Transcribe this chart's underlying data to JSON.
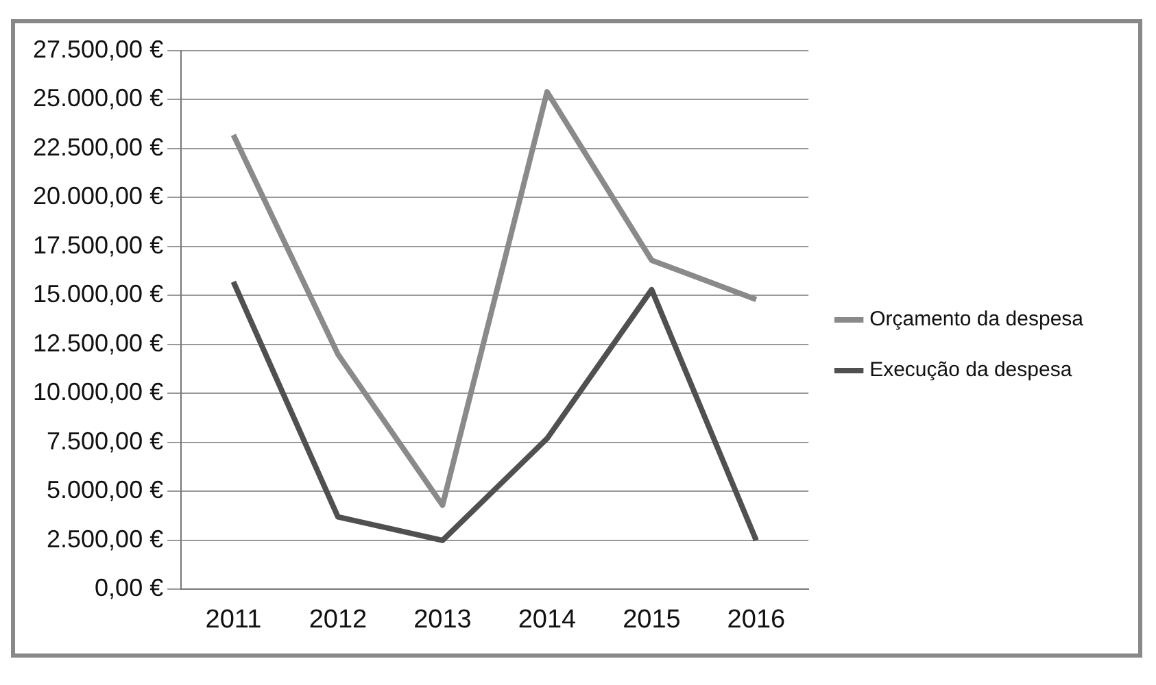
{
  "chart_data": {
    "type": "line",
    "categories": [
      "2011",
      "2012",
      "2013",
      "2014",
      "2015",
      "2016"
    ],
    "series": [
      {
        "name": "Orçamento da despesa",
        "color": "#8a8a8a",
        "values": [
          23200,
          12000,
          4300,
          25400,
          16800,
          14800
        ]
      },
      {
        "name": "Execução da despesa",
        "color": "#505050",
        "values": [
          15700,
          3700,
          2500,
          7700,
          15300,
          2500
        ]
      }
    ],
    "ylim": [
      0,
      27500
    ],
    "yticks": [
      {
        "value": 0,
        "label": "0,00 €"
      },
      {
        "value": 2500,
        "label": "2.500,00 €"
      },
      {
        "value": 5000,
        "label": "5.000,00 €"
      },
      {
        "value": 7500,
        "label": "7.500,00 €"
      },
      {
        "value": 10000,
        "label": "10.000,00 €"
      },
      {
        "value": 12500,
        "label": "12.500,00 €"
      },
      {
        "value": 15000,
        "label": "15.000,00 €"
      },
      {
        "value": 17500,
        "label": "17.500,00 €"
      },
      {
        "value": 20000,
        "label": "20.000,00 €"
      },
      {
        "value": 22500,
        "label": "22.500,00 €"
      },
      {
        "value": 25000,
        "label": "25.000,00 €"
      },
      {
        "value": 27500,
        "label": "27.500,00 €"
      }
    ],
    "grid": "y",
    "legend": "right",
    "marker": "none",
    "line_style": "solid"
  }
}
